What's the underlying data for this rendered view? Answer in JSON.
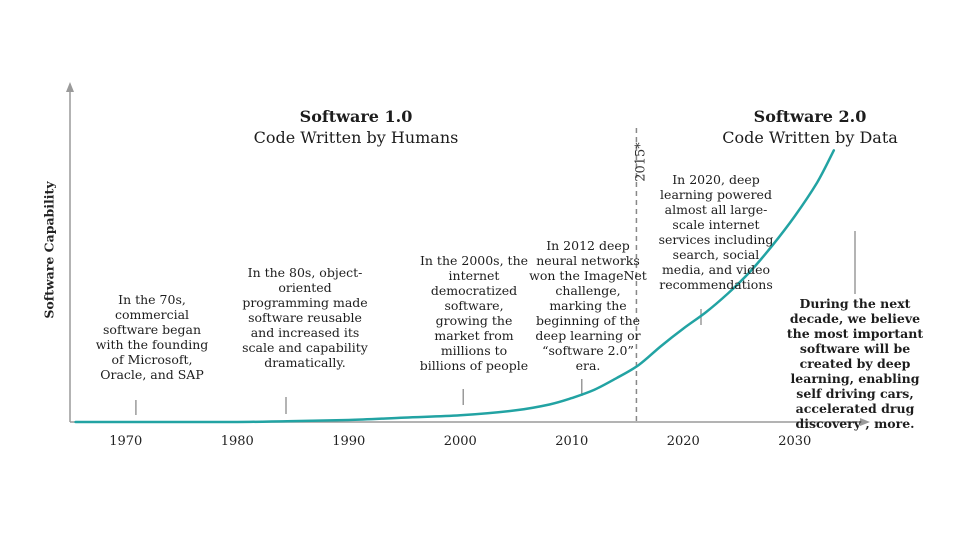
{
  "chart_data": {
    "type": "line",
    "ylabel": "Software Capability",
    "xlabel": "",
    "xlim": [
      1965,
      2035
    ],
    "ylim": [
      0,
      100
    ],
    "x_ticks": [
      1970,
      1980,
      1990,
      2000,
      2010,
      2020,
      2030
    ],
    "series": [
      {
        "name": "Software Capability",
        "color": "#22a3a3",
        "x": [
          1965.5,
          1970,
          1975,
          1980,
          1985,
          1990,
          1995,
          2000,
          2005,
          2008,
          2010,
          2012,
          2014,
          2016,
          2018,
          2020,
          2022,
          2024,
          2026,
          2028,
          2030,
          2032,
          2033.5
        ],
        "y": [
          0,
          0,
          0,
          0,
          0.3,
          0.7,
          1.5,
          2.3,
          4,
          6,
          8.2,
          11,
          15,
          19.5,
          26,
          32,
          37.5,
          44,
          51.5,
          60.5,
          70.5,
          82,
          93
        ]
      }
    ],
    "divider": {
      "x": 2015.8,
      "label": "2015*"
    },
    "regions": [
      {
        "title": "Software 1.0",
        "subtitle": "Code Written by Humans"
      },
      {
        "title": "Software 2.0",
        "subtitle": "Code Written by Data"
      }
    ],
    "annotations": [
      {
        "x": 1971,
        "text": "In the 70s, commercial software began with the founding of Microsoft, Oracle, and SAP"
      },
      {
        "x": 1985,
        "text": "In the 80s, object-oriented programming made software reusable and increased its scale and capability dramatically."
      },
      {
        "x": 2000,
        "text": "In the 2000s, the internet democratized software, growing the market from millions to billions of people"
      },
      {
        "x": 2010,
        "text": "In 2012 deep neural networks won the ImageNet challenge, marking the beginning of the deep learning or “software 2.0” era."
      },
      {
        "x": 2020,
        "text": "In 2020, deep learning powered almost all large-scale internet services including search, social media, and video recommendations"
      },
      {
        "x": 2035,
        "text": "During the next decade, we believe the most important software will be created by deep learning, enabling self driving cars, accelerated drug discovery , more."
      }
    ],
    "colors": {
      "axis": "#9a9a9a",
      "line": "#22a3a3",
      "divider": "#888888",
      "marker": "#9a9a9a"
    }
  }
}
